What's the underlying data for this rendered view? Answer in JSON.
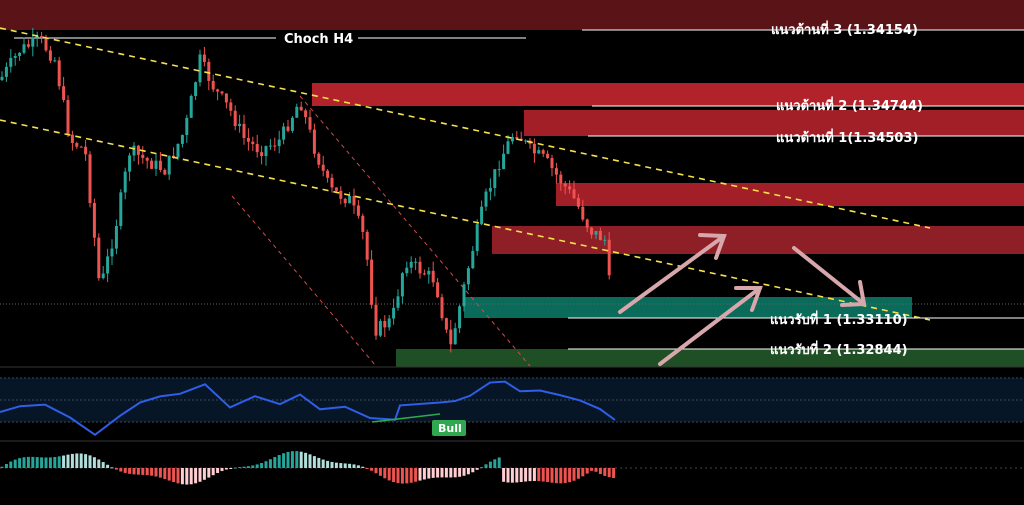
{
  "chart_data": {
    "type": "candlestick",
    "title": "Choch H4",
    "resistance_levels": [
      {
        "label": "แนวต้านที่ 3 (1.34154)",
        "price": 1.34154
      },
      {
        "label": "แนวต้านที่ 2 (1.34744)",
        "price": 1.34744
      },
      {
        "label": "แนวต้านที่ 1(1.34503)",
        "price": 1.34503
      }
    ],
    "support_levels": [
      {
        "label": "แนวรับที่ 1 (1.33110)",
        "price": 1.3311
      },
      {
        "label": "แนวรับที่ 2 (1.32844)",
        "price": 1.32844
      }
    ],
    "indicator_badge": "Bull",
    "colors": {
      "up": "#26a69a",
      "down": "#ef5350",
      "resistance_zone": "#b2222b",
      "support_zone": "#0a6b5a",
      "support_zone_2": "#1f4f24",
      "trendline": "#f5e14a",
      "rsi_line": "#2f5ee8",
      "badge": "#2fa84f",
      "arrows": "#d8a7ab"
    }
  }
}
